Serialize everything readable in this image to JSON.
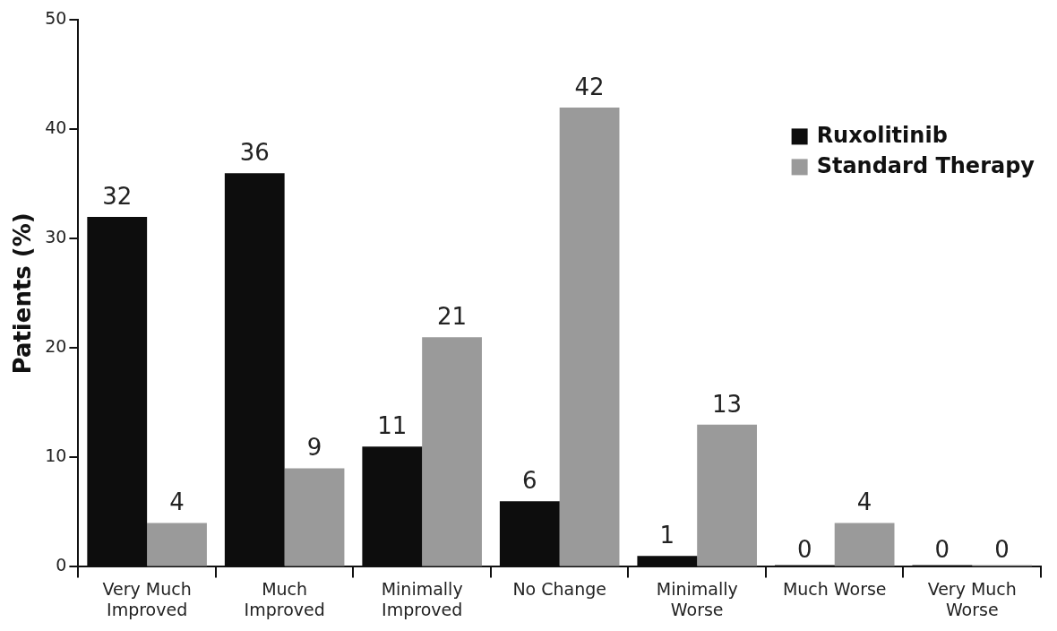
{
  "chart_data": {
    "type": "bar",
    "ylabel": "Patients (%)",
    "categories": [
      "Very Much Improved",
      "Much Improved",
      "Minimally Improved",
      "No Change",
      "Minimally Worse",
      "Much Worse",
      "Very Much Worse"
    ],
    "series": [
      {
        "name": "Ruxolitinib",
        "color": "#0d0d0d",
        "values": [
          32,
          36,
          11,
          6,
          1,
          0,
          0
        ]
      },
      {
        "name": "Standard Therapy",
        "color": "#9a9a9a",
        "values": [
          4,
          9,
          21,
          42,
          13,
          4,
          0
        ]
      }
    ],
    "ylim": [
      0,
      50
    ],
    "yticks": [
      0,
      10,
      20,
      30,
      40,
      50
    ],
    "data_labels": true,
    "legend": "top right"
  }
}
